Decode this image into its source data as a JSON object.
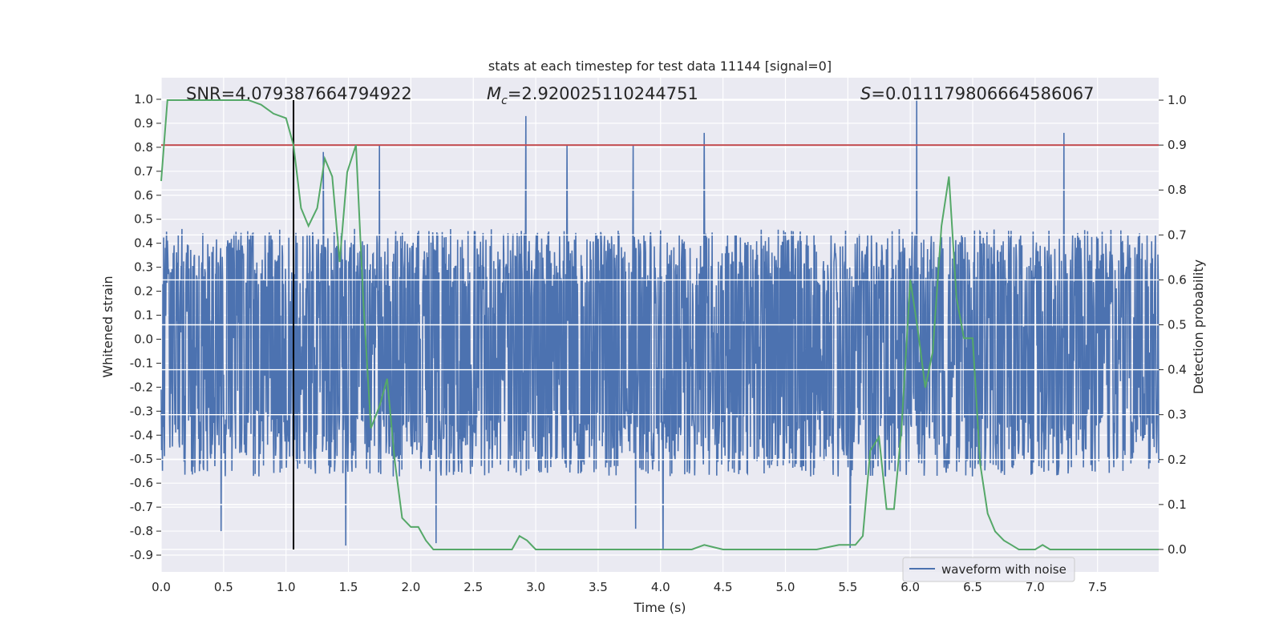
{
  "chart_data": {
    "type": "line",
    "title": "stats at each timestep for test data 11144 [signal=0]",
    "xlabel": "Time (s)",
    "ylabel": "Whitened strain",
    "y2label": "Detection probability",
    "xlim": [
      0.0,
      7.99
    ],
    "ylim": [
      -0.97,
      1.09
    ],
    "y2lim": [
      -0.05,
      1.05
    ],
    "x_ticks": [
      "0.0",
      "0.5",
      "1.0",
      "1.5",
      "2.0",
      "2.5",
      "3.0",
      "3.5",
      "4.0",
      "4.5",
      "5.0",
      "5.5",
      "6.0",
      "6.5",
      "7.0",
      "7.5"
    ],
    "y_ticks": [
      "1.0",
      "0.9",
      "0.8",
      "0.7",
      "0.6",
      "0.5",
      "0.4",
      "0.3",
      "0.2",
      "0.1",
      "0.0",
      "-0.1",
      "-0.2",
      "-0.3",
      "-0.4",
      "-0.5",
      "-0.6",
      "-0.7",
      "-0.8",
      "-0.9"
    ],
    "y2_ticks": [
      "1.0",
      "0.9",
      "0.8",
      "0.7",
      "0.6",
      "0.5",
      "0.4",
      "0.3",
      "0.2",
      "0.1",
      "0.0"
    ],
    "grid": true,
    "legend_position": "lower-right",
    "annotations": {
      "snr": "SNR=4.079387664794922",
      "mc_symbol": "M",
      "mc_sub": "c",
      "mc_value": "=2.920025110244751",
      "s_symbol": "S",
      "s_value": "=0.011179806664586067"
    },
    "vertical_marker_x": 1.06,
    "threshold_probability": 0.9,
    "series": [
      {
        "name": "waveform with noise",
        "kind": "noise-band",
        "color": "#4c72b0",
        "band_min": -0.52,
        "band_max": 0.4,
        "notable_peaks": [
          {
            "x": 2.92,
            "y": 0.93
          },
          {
            "x": 6.05,
            "y": 1.0
          },
          {
            "x": 7.23,
            "y": 0.86
          },
          {
            "x": 1.75,
            "y": 0.81
          },
          {
            "x": 3.25,
            "y": 0.81
          },
          {
            "x": 3.78,
            "y": 0.81
          },
          {
            "x": 4.35,
            "y": 0.86
          },
          {
            "x": 1.3,
            "y": 0.78
          }
        ],
        "notable_troughs": [
          {
            "x": 4.02,
            "y": -0.88
          },
          {
            "x": 1.48,
            "y": -0.86
          },
          {
            "x": 2.2,
            "y": -0.85
          },
          {
            "x": 5.52,
            "y": -0.87
          },
          {
            "x": 0.48,
            "y": -0.8
          },
          {
            "x": 3.8,
            "y": -0.79
          }
        ]
      },
      {
        "kind": "probability",
        "axis": "right",
        "color": "#55a868",
        "x": [
          0.0,
          0.05,
          0.1,
          0.2,
          0.3,
          0.5,
          0.7,
          0.8,
          0.9,
          1.0,
          1.06,
          1.12,
          1.18,
          1.25,
          1.31,
          1.37,
          1.43,
          1.49,
          1.56,
          1.62,
          1.68,
          1.75,
          1.81,
          1.87,
          1.93,
          2.0,
          2.06,
          2.12,
          2.18,
          2.25,
          2.5,
          2.75,
          2.81,
          2.87,
          2.93,
          3.0,
          3.06,
          3.12,
          3.18,
          3.25,
          3.5,
          3.75,
          4.0,
          4.25,
          4.35,
          4.5,
          4.75,
          5.0,
          5.25,
          5.43,
          5.5,
          5.56,
          5.62,
          5.68,
          5.75,
          5.81,
          5.87,
          5.93,
          6.0,
          6.06,
          6.12,
          6.18,
          6.25,
          6.31,
          6.37,
          6.43,
          6.5,
          6.56,
          6.62,
          6.68,
          6.75,
          6.81,
          6.87,
          6.93,
          7.0,
          7.06,
          7.12,
          7.25,
          7.5,
          7.75,
          7.99
        ],
        "y": [
          0.82,
          1.0,
          1.0,
          1.0,
          1.0,
          1.0,
          1.0,
          0.99,
          0.97,
          0.96,
          0.9,
          0.76,
          0.72,
          0.76,
          0.87,
          0.83,
          0.64,
          0.84,
          0.9,
          0.55,
          0.27,
          0.32,
          0.38,
          0.2,
          0.07,
          0.05,
          0.05,
          0.02,
          0.0,
          0.0,
          0.0,
          0.0,
          0.0,
          0.03,
          0.02,
          0.0,
          0.0,
          0.0,
          0.0,
          0.0,
          0.0,
          0.0,
          0.0,
          0.0,
          0.01,
          0.0,
          0.0,
          0.0,
          0.0,
          0.01,
          0.01,
          0.01,
          0.03,
          0.22,
          0.25,
          0.09,
          0.09,
          0.27,
          0.6,
          0.49,
          0.36,
          0.44,
          0.72,
          0.83,
          0.56,
          0.47,
          0.47,
          0.19,
          0.08,
          0.04,
          0.02,
          0.01,
          0.0,
          0.0,
          0.0,
          0.01,
          0.0,
          0.0,
          0.0,
          0.0,
          0.0
        ]
      }
    ]
  }
}
